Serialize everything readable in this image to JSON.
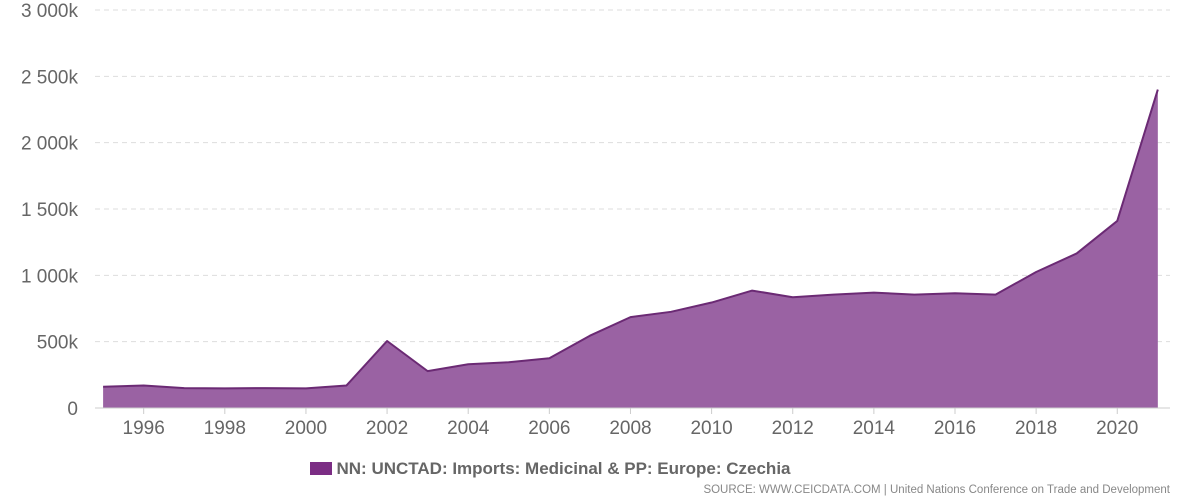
{
  "chart_data": {
    "type": "area",
    "x": [
      1995,
      1996,
      1997,
      1998,
      1999,
      2000,
      2001,
      2002,
      2003,
      2004,
      2005,
      2006,
      2007,
      2008,
      2009,
      2010,
      2011,
      2012,
      2013,
      2014,
      2015,
      2016,
      2017,
      2018,
      2019,
      2020,
      2021
    ],
    "series": [
      {
        "name": "NN: UNCTAD: Imports: Medicinal & PP: Europe: Czechia",
        "values": [
          160000,
          170000,
          150000,
          148000,
          150000,
          148000,
          170000,
          505000,
          278000,
          330000,
          345000,
          375000,
          545000,
          685000,
          725000,
          795000,
          885000,
          835000,
          855000,
          870000,
          855000,
          865000,
          855000,
          1025000,
          1165000,
          1410000,
          2400000
        ],
        "color": "#7b2d84"
      }
    ],
    "ylim": [
      0,
      3000000
    ],
    "yticks": [
      0,
      500000,
      1000000,
      1500000,
      2000000,
      2500000,
      3000000
    ],
    "ytick_labels": [
      "0",
      "500k",
      "1 000k",
      "1 500k",
      "2 000k",
      "2 500k",
      "3 000k"
    ],
    "xticks": [
      1996,
      1998,
      2000,
      2002,
      2004,
      2006,
      2008,
      2010,
      2012,
      2014,
      2016,
      2018,
      2020
    ],
    "xtick_labels": [
      "1996",
      "1998",
      "2000",
      "2002",
      "2004",
      "2006",
      "2008",
      "2010",
      "2012",
      "2014",
      "2016",
      "2018",
      "2020"
    ],
    "grid": true,
    "legend": "bottom-center",
    "fill_color": "#9a62a3",
    "line_color": "#6b2a74",
    "grid_color": "#dddddd",
    "text_color": "#666666"
  },
  "legend": {
    "label": "NN: UNCTAD: Imports: Medicinal & PP: Europe: Czechia"
  },
  "source": {
    "text": "SOURCE: WWW.CEICDATA.COM | United Nations Conference on Trade and Development"
  }
}
